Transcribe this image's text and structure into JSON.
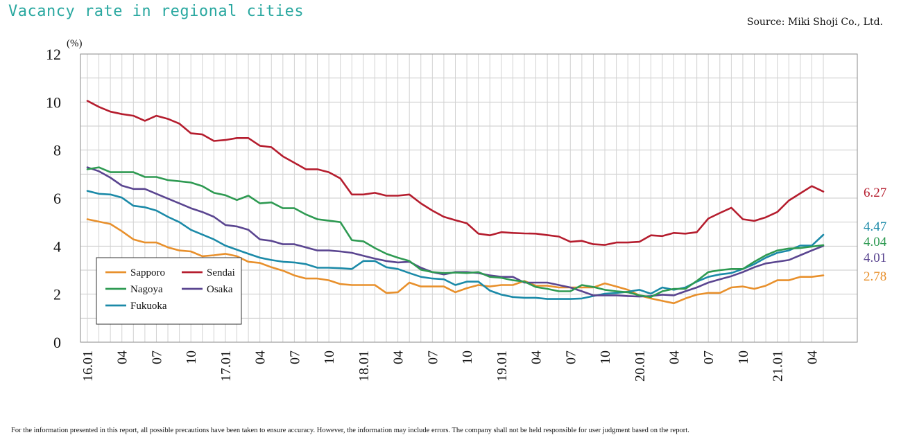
{
  "page": {
    "title": "Vacancy rate in regional cities",
    "source": "Source: Miki Shoji Co., Ltd.",
    "disclaimer": "For the information presented in this report, all possible precautions have been taken to ensure accuracy. However, the information may include errors. The company shall not be held responsible for user judgment based on the report."
  },
  "chart_data": {
    "type": "line",
    "title": "Vacancy rate in regional cities",
    "ylabel": "(%)",
    "xlabel": "",
    "ylim": [
      0,
      12
    ],
    "yticks": [
      0,
      2,
      4,
      6,
      8,
      10,
      12
    ],
    "grid": true,
    "legend_position": "bottom-left",
    "x": [
      "16.01",
      "16.02",
      "16.03",
      "16.04",
      "16.05",
      "16.06",
      "16.07",
      "16.08",
      "16.09",
      "16.10",
      "16.11",
      "16.12",
      "17.01",
      "17.02",
      "17.03",
      "17.04",
      "17.05",
      "17.06",
      "17.07",
      "17.08",
      "17.09",
      "17.10",
      "17.11",
      "17.12",
      "18.01",
      "18.02",
      "18.03",
      "18.04",
      "18.05",
      "18.06",
      "18.07",
      "18.08",
      "18.09",
      "18.10",
      "18.11",
      "18.12",
      "19.01",
      "19.02",
      "19.03",
      "19.04",
      "19.05",
      "19.06",
      "19.07",
      "19.08",
      "19.09",
      "19.10",
      "19.11",
      "19.12",
      "20.01",
      "20.02",
      "20.03",
      "20.04",
      "20.05",
      "20.06",
      "20.07",
      "20.08",
      "20.09",
      "20.10",
      "20.11",
      "20.12",
      "21.01",
      "21.02",
      "21.03",
      "21.04",
      "21.05"
    ],
    "tick_labels": [
      "16.01",
      "04",
      "07",
      "10",
      "17.01",
      "04",
      "07",
      "10",
      "18.01",
      "04",
      "07",
      "10",
      "19.01",
      "04",
      "07",
      "10",
      "20.01",
      "04",
      "07",
      "10",
      "21.01",
      "04"
    ],
    "tick_positions": [
      "16.01",
      "16.04",
      "16.07",
      "16.10",
      "17.01",
      "17.04",
      "17.07",
      "17.10",
      "18.01",
      "18.04",
      "18.07",
      "18.10",
      "19.01",
      "19.04",
      "19.07",
      "19.10",
      "20.01",
      "20.04",
      "20.07",
      "20.10",
      "21.01",
      "21.04"
    ],
    "series": [
      {
        "name": "Sendai",
        "color": "#b51d2e",
        "end_label": "6.27",
        "values": [
          10.05,
          9.8,
          9.6,
          9.5,
          9.43,
          9.22,
          9.43,
          9.3,
          9.1,
          8.7,
          8.65,
          8.38,
          8.42,
          8.5,
          8.5,
          8.18,
          8.12,
          7.74,
          7.47,
          7.2,
          7.2,
          7.08,
          6.82,
          6.15,
          6.15,
          6.22,
          6.1,
          6.1,
          6.15,
          5.78,
          5.48,
          5.22,
          5.08,
          4.95,
          4.52,
          4.45,
          4.58,
          4.55,
          4.53,
          4.52,
          4.46,
          4.4,
          4.18,
          4.22,
          4.08,
          4.05,
          4.15,
          4.15,
          4.18,
          4.45,
          4.42,
          4.55,
          4.52,
          4.58,
          5.15,
          5.38,
          5.6,
          5.12,
          5.05,
          5.2,
          5.42,
          5.9,
          6.2,
          6.5,
          6.27
        ]
      },
      {
        "name": "Nagoya",
        "color": "#2e9a52",
        "end_label": "4.04",
        "values": [
          7.2,
          7.28,
          7.08,
          7.08,
          7.08,
          6.88,
          6.88,
          6.75,
          6.7,
          6.65,
          6.5,
          6.22,
          6.12,
          5.92,
          6.1,
          5.78,
          5.82,
          5.58,
          5.58,
          5.32,
          5.12,
          5.06,
          5.0,
          4.25,
          4.2,
          3.92,
          3.68,
          3.52,
          3.38,
          3.02,
          2.92,
          2.88,
          2.9,
          2.88,
          2.92,
          2.72,
          2.68,
          2.58,
          2.52,
          2.3,
          2.22,
          2.12,
          2.12,
          2.38,
          2.3,
          2.18,
          2.12,
          2.08,
          1.95,
          1.88,
          2.12,
          2.22,
          2.22,
          2.55,
          2.92,
          3.0,
          3.05,
          3.05,
          3.35,
          3.62,
          3.82,
          3.9,
          3.92,
          3.98,
          4.04
        ]
      },
      {
        "name": "Osaka",
        "color": "#5a4590",
        "end_label": "4.01",
        "values": [
          7.28,
          7.12,
          6.85,
          6.52,
          6.38,
          6.38,
          6.18,
          5.98,
          5.78,
          5.58,
          5.42,
          5.22,
          4.88,
          4.82,
          4.68,
          4.28,
          4.22,
          4.08,
          4.08,
          3.95,
          3.82,
          3.82,
          3.78,
          3.72,
          3.6,
          3.48,
          3.38,
          3.32,
          3.35,
          3.1,
          2.92,
          2.82,
          2.92,
          2.92,
          2.88,
          2.78,
          2.72,
          2.72,
          2.48,
          2.48,
          2.48,
          2.38,
          2.28,
          2.12,
          1.95,
          1.95,
          1.95,
          1.92,
          1.9,
          1.92,
          1.98,
          1.95,
          2.12,
          2.28,
          2.48,
          2.62,
          2.75,
          2.92,
          3.12,
          3.28,
          3.35,
          3.42,
          3.62,
          3.82,
          4.01
        ]
      },
      {
        "name": "Fukuoka",
        "color": "#1b8aa8",
        "end_label": "4.47",
        "values": [
          6.3,
          6.18,
          6.15,
          6.02,
          5.68,
          5.62,
          5.48,
          5.22,
          5.0,
          4.68,
          4.48,
          4.28,
          4.02,
          3.85,
          3.68,
          3.52,
          3.42,
          3.35,
          3.32,
          3.25,
          3.1,
          3.1,
          3.08,
          3.05,
          3.38,
          3.38,
          3.12,
          3.05,
          2.88,
          2.72,
          2.65,
          2.62,
          2.38,
          2.52,
          2.52,
          2.15,
          1.98,
          1.88,
          1.85,
          1.85,
          1.8,
          1.8,
          1.8,
          1.82,
          1.92,
          2.02,
          2.05,
          2.1,
          2.18,
          2.02,
          2.28,
          2.18,
          2.28,
          2.52,
          2.72,
          2.82,
          2.88,
          3.05,
          3.25,
          3.52,
          3.72,
          3.82,
          4.02,
          4.02,
          4.47
        ]
      },
      {
        "name": "Sapporo",
        "color": "#e8902c",
        "end_label": "2.78",
        "values": [
          5.12,
          5.02,
          4.92,
          4.62,
          4.28,
          4.15,
          4.15,
          3.95,
          3.82,
          3.78,
          3.58,
          3.62,
          3.68,
          3.58,
          3.35,
          3.3,
          3.12,
          2.98,
          2.78,
          2.65,
          2.65,
          2.58,
          2.42,
          2.38,
          2.38,
          2.38,
          2.05,
          2.08,
          2.48,
          2.32,
          2.32,
          2.32,
          2.08,
          2.25,
          2.38,
          2.32,
          2.38,
          2.38,
          2.55,
          2.35,
          2.35,
          2.28,
          2.28,
          2.28,
          2.28,
          2.45,
          2.32,
          2.18,
          1.95,
          1.82,
          1.72,
          1.62,
          1.82,
          1.98,
          2.05,
          2.05,
          2.28,
          2.32,
          2.22,
          2.35,
          2.58,
          2.58,
          2.72,
          2.72,
          2.78
        ]
      }
    ],
    "legend": [
      "Sapporo",
      "Sendai",
      "Nagoya",
      "Osaka",
      "Fukuoka"
    ]
  }
}
